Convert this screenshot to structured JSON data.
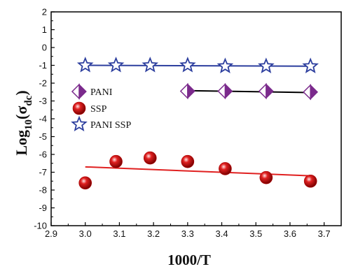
{
  "chart_data": {
    "type": "scatter",
    "title": "",
    "xlabel": "1000/T",
    "ylabel_main": "Log",
    "ylabel_sub": "10",
    "ylabel_paren": "(σ",
    "ylabel_paren_sub": "dc",
    "ylabel_close": ")",
    "xlim": [
      2.9,
      3.75
    ],
    "ylim": [
      -10,
      2
    ],
    "xticks": [
      "2.9",
      "3.0",
      "3.1",
      "3.2",
      "3.3",
      "3.4",
      "3.5",
      "3.6",
      "3.7"
    ],
    "xtick_values": [
      2.9,
      3.0,
      3.1,
      3.2,
      3.3,
      3.4,
      3.5,
      3.6,
      3.7
    ],
    "yticks": [
      "-10",
      "-9",
      "-8",
      "-7",
      "-6",
      "-5",
      "-4",
      "-3",
      "-2",
      "-1",
      "0",
      "1",
      "2"
    ],
    "ytick_values": [
      -10,
      -9,
      -8,
      -7,
      -6,
      -5,
      -4,
      -3,
      -2,
      -1,
      0,
      1,
      2
    ],
    "grid": false,
    "legend_position": "left-middle",
    "series": [
      {
        "name": "PANI",
        "marker": "diamond",
        "color": "#7b2a8c",
        "line_color": "#000000",
        "x": [
          3.3,
          3.41,
          3.53,
          3.66
        ],
        "y": [
          -2.45,
          -2.45,
          -2.45,
          -2.5
        ],
        "fit": [
          [
            3.3,
            -2.42
          ],
          [
            3.66,
            -2.53
          ]
        ]
      },
      {
        "name": "SSP",
        "marker": "sphere",
        "color": "#e02020",
        "line_color": "#e02020",
        "x": [
          3.0,
          3.09,
          3.19,
          3.3,
          3.41,
          3.53,
          3.66
        ],
        "y": [
          -7.6,
          -6.4,
          -6.2,
          -6.4,
          -6.8,
          -7.3,
          -7.5
        ],
        "fit": [
          [
            3.0,
            -6.7
          ],
          [
            3.66,
            -7.2
          ]
        ]
      },
      {
        "name": "PANI SSP",
        "marker": "star",
        "color": "#2c3e9e",
        "line_color": "#2c3e9e",
        "x": [
          3.0,
          3.09,
          3.19,
          3.3,
          3.41,
          3.53,
          3.66
        ],
        "y": [
          -1.0,
          -1.0,
          -1.0,
          -1.0,
          -1.05,
          -1.05,
          -1.05
        ],
        "fit": [
          [
            3.0,
            -1.0
          ],
          [
            3.66,
            -1.05
          ]
        ]
      }
    ]
  }
}
